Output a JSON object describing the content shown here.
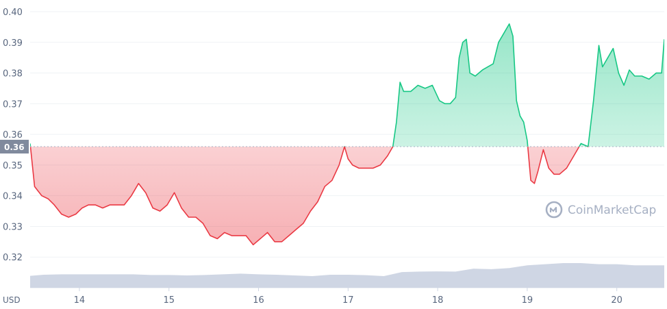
{
  "chart_data": {
    "type": "area",
    "currency_label": "USD",
    "watermark": "CoinMarketCap",
    "baseline_value": 0.356,
    "baseline_label": "0.36",
    "ylim": [
      0.31,
      0.4
    ],
    "y_ticks": [
      {
        "value": 0.4,
        "label": "0.40"
      },
      {
        "value": 0.39,
        "label": "0.39"
      },
      {
        "value": 0.38,
        "label": "0.38"
      },
      {
        "value": 0.37,
        "label": "0.37"
      },
      {
        "value": 0.36,
        "label": "0.36"
      },
      {
        "value": 0.35,
        "label": "0.35"
      },
      {
        "value": 0.34,
        "label": "0.34"
      },
      {
        "value": 0.33,
        "label": "0.33"
      },
      {
        "value": 0.32,
        "label": "0.32"
      }
    ],
    "xlim": [
      13.45,
      20.53
    ],
    "x_ticks": [
      {
        "value": 14,
        "label": "14"
      },
      {
        "value": 15,
        "label": "15"
      },
      {
        "value": 16,
        "label": "16"
      },
      {
        "value": 17,
        "label": "17"
      },
      {
        "value": 18,
        "label": "18"
      },
      {
        "value": 19,
        "label": "19"
      },
      {
        "value": 20,
        "label": "20"
      }
    ],
    "colors": {
      "up": "#16c784",
      "down": "#ea3943",
      "volume": "#cfd6e4",
      "grid": "#eff2f5",
      "baseline": "#a6b0c3",
      "tag": "#808a9d"
    },
    "price_series": {
      "x": [
        13.45,
        13.5,
        13.58,
        13.65,
        13.72,
        13.8,
        13.88,
        13.96,
        14.03,
        14.1,
        14.18,
        14.26,
        14.34,
        14.42,
        14.5,
        14.58,
        14.66,
        14.74,
        14.82,
        14.9,
        14.98,
        15.06,
        15.14,
        15.22,
        15.3,
        15.38,
        15.46,
        15.54,
        15.62,
        15.7,
        15.78,
        15.86,
        15.94,
        16.02,
        16.1,
        16.18,
        16.26,
        16.34,
        16.42,
        16.5,
        16.58,
        16.66,
        16.74,
        16.82,
        16.9,
        16.96,
        17.0,
        17.05,
        17.12,
        17.2,
        17.28,
        17.36,
        17.44,
        17.5,
        17.54,
        17.58,
        17.62,
        17.7,
        17.78,
        17.86,
        17.94,
        18.02,
        18.08,
        18.14,
        18.2,
        18.24,
        18.28,
        18.32,
        18.36,
        18.42,
        18.5,
        18.56,
        18.62,
        18.68,
        18.74,
        18.8,
        18.84,
        18.88,
        18.92,
        18.96,
        19.0,
        19.04,
        19.08,
        19.12,
        19.18,
        19.24,
        19.3,
        19.36,
        19.44,
        19.52,
        19.6,
        19.68,
        19.74,
        19.8,
        19.84,
        19.9,
        19.96,
        20.02,
        20.08,
        20.14,
        20.2,
        20.28,
        20.36,
        20.44,
        20.5,
        20.53
      ],
      "y": [
        0.357,
        0.343,
        0.34,
        0.339,
        0.337,
        0.334,
        0.333,
        0.334,
        0.336,
        0.337,
        0.337,
        0.336,
        0.337,
        0.337,
        0.337,
        0.34,
        0.344,
        0.341,
        0.336,
        0.335,
        0.337,
        0.341,
        0.336,
        0.333,
        0.333,
        0.331,
        0.327,
        0.326,
        0.328,
        0.327,
        0.327,
        0.327,
        0.324,
        0.326,
        0.328,
        0.325,
        0.325,
        0.327,
        0.329,
        0.331,
        0.335,
        0.338,
        0.343,
        0.345,
        0.35,
        0.356,
        0.352,
        0.35,
        0.349,
        0.349,
        0.349,
        0.35,
        0.353,
        0.356,
        0.364,
        0.377,
        0.374,
        0.374,
        0.376,
        0.375,
        0.376,
        0.371,
        0.37,
        0.37,
        0.372,
        0.385,
        0.39,
        0.391,
        0.38,
        0.379,
        0.381,
        0.382,
        0.383,
        0.39,
        0.393,
        0.396,
        0.392,
        0.371,
        0.366,
        0.364,
        0.358,
        0.345,
        0.344,
        0.348,
        0.355,
        0.349,
        0.347,
        0.347,
        0.349,
        0.353,
        0.357,
        0.356,
        0.371,
        0.389,
        0.382,
        0.385,
        0.388,
        0.38,
        0.376,
        0.381,
        0.379,
        0.379,
        0.378,
        0.38,
        0.38,
        0.391
      ]
    },
    "volume_series": {
      "x": [
        13.45,
        13.6,
        13.8,
        14.0,
        14.2,
        14.4,
        14.6,
        14.8,
        15.0,
        15.2,
        15.4,
        15.6,
        15.8,
        16.0,
        16.2,
        16.4,
        16.6,
        16.8,
        17.0,
        17.2,
        17.4,
        17.6,
        17.8,
        18.0,
        18.2,
        18.4,
        18.6,
        18.8,
        19.0,
        19.2,
        19.4,
        19.6,
        19.8,
        20.0,
        20.2,
        20.4,
        20.53
      ],
      "y": [
        0.53,
        0.58,
        0.6,
        0.6,
        0.6,
        0.6,
        0.6,
        0.57,
        0.57,
        0.55,
        0.57,
        0.6,
        0.63,
        0.6,
        0.58,
        0.55,
        0.52,
        0.58,
        0.58,
        0.56,
        0.52,
        0.7,
        0.72,
        0.73,
        0.72,
        0.85,
        0.83,
        0.88,
        1.0,
        1.05,
        1.1,
        1.1,
        1.05,
        1.05,
        1.0,
        1.0,
        1.0
      ]
    }
  }
}
